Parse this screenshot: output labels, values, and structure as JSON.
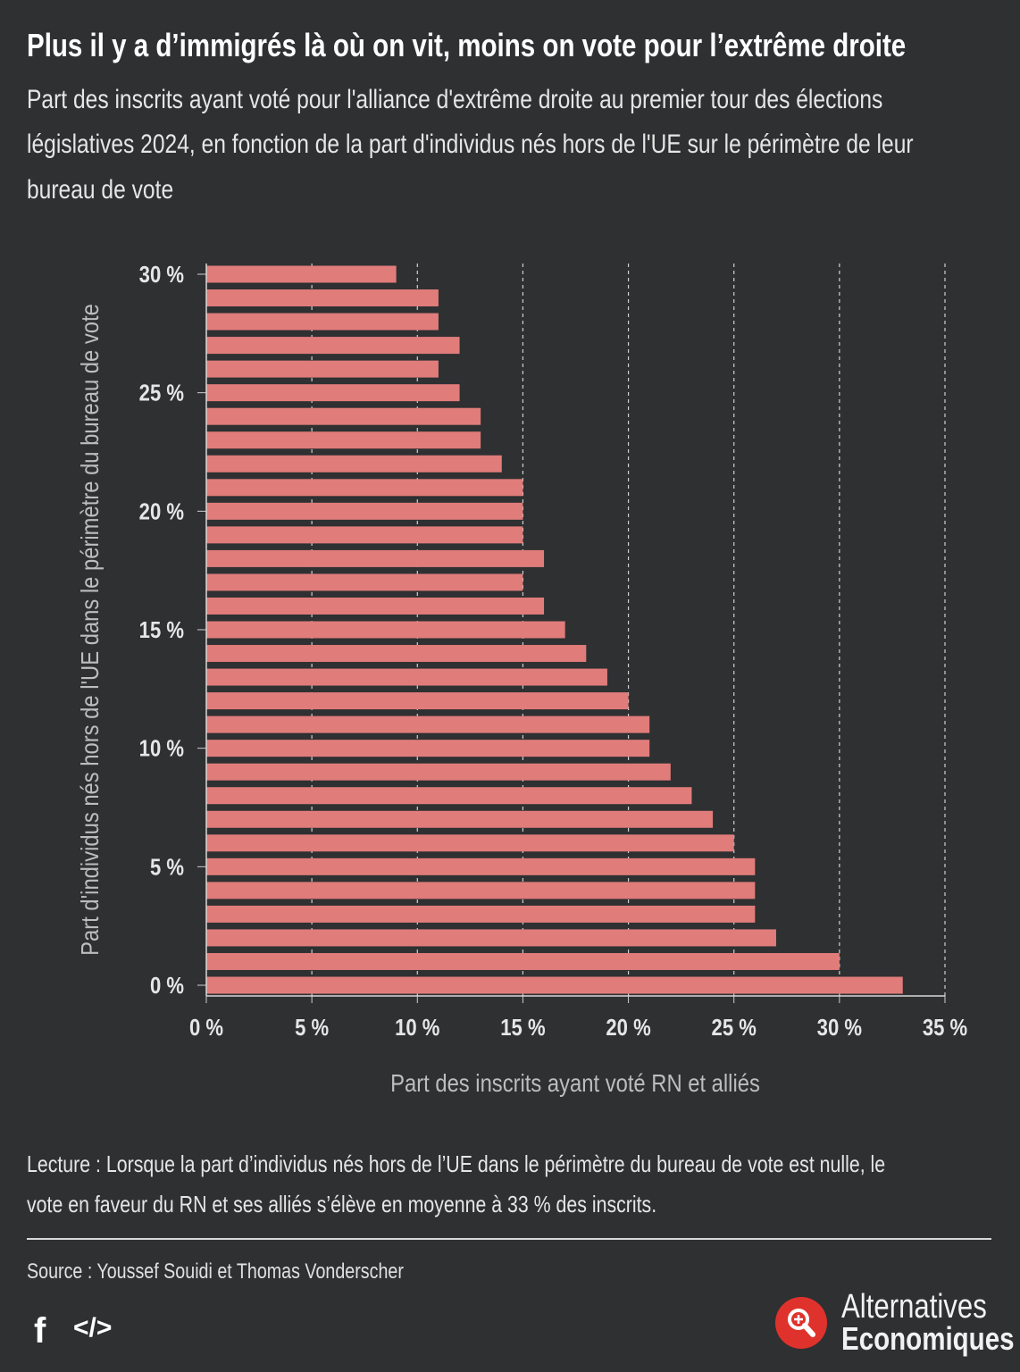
{
  "header": {
    "title": "Plus il y a d’immigrés là où on vit, moins on vote pour l’extrême droite",
    "subtitle_lines": [
      "Part des inscrits ayant voté pour l'alliance d'extrême droite au premier tour des élections",
      "législatives 2024, en fonction de la part d'individus nés hors de l'UE sur le périmètre de leur",
      "bureau de vote"
    ]
  },
  "chart_data": {
    "type": "bar",
    "orientation": "horizontal",
    "categories": [
      "0 %",
      "1 %",
      "2 %",
      "3 %",
      "4 %",
      "5 %",
      "6 %",
      "7 %",
      "8 %",
      "9 %",
      "10 %",
      "11 %",
      "12 %",
      "13 %",
      "14 %",
      "15 %",
      "16 %",
      "17 %",
      "18 %",
      "19 %",
      "20 %",
      "21 %",
      "22 %",
      "23 %",
      "24 %",
      "25 %",
      "26 %",
      "27 %",
      "28 %",
      "29 %",
      "30 %"
    ],
    "category_values": [
      0,
      1,
      2,
      3,
      4,
      5,
      6,
      7,
      8,
      9,
      10,
      11,
      12,
      13,
      14,
      15,
      16,
      17,
      18,
      19,
      20,
      21,
      22,
      23,
      24,
      25,
      26,
      27,
      28,
      29,
      30
    ],
    "values": [
      33,
      30,
      27,
      26,
      26,
      26,
      25,
      24,
      23,
      22,
      21,
      21,
      20,
      19,
      18,
      17,
      16,
      15,
      16,
      15,
      15,
      15,
      14,
      13,
      13,
      12,
      11,
      12,
      11,
      11,
      9
    ],
    "xlabel": "Part des inscrits ayant voté RN et alliés",
    "ylabel": "Part d'individus nés hors de l'UE dans le périmètre du bureau de vote",
    "xlim": [
      0,
      35
    ],
    "xticks": [
      "0 %",
      "5 %",
      "10 %",
      "15 %",
      "20 %",
      "25 %",
      "30 %",
      "35 %"
    ],
    "xtick_values": [
      0,
      5,
      10,
      15,
      20,
      25,
      30,
      35
    ],
    "yticks": [
      "0 %",
      "5 %",
      "10 %",
      "15 %",
      "20 %",
      "25 %",
      "30 %"
    ],
    "ytick_values": [
      0,
      5,
      10,
      15,
      20,
      25,
      30
    ],
    "grid": "vertical dashed",
    "bar_color": "#e07c7a"
  },
  "notes": {
    "lecture_lines": [
      "Lecture : Lorsque la part d’individus nés hors de l’UE dans le périmètre du bureau de vote est nulle, le",
      "vote en faveur du RN et ses alliés s’élève en moyenne à 33 % des inscrits."
    ],
    "source": "Source : Youssef Souidi et Thomas Vonderscher"
  },
  "footer": {
    "facebook_icon": "f",
    "embed_icon": "</>",
    "logo_line1": "Alternatives",
    "logo_line2": "Economiques",
    "logo_color": "#e0322c"
  }
}
